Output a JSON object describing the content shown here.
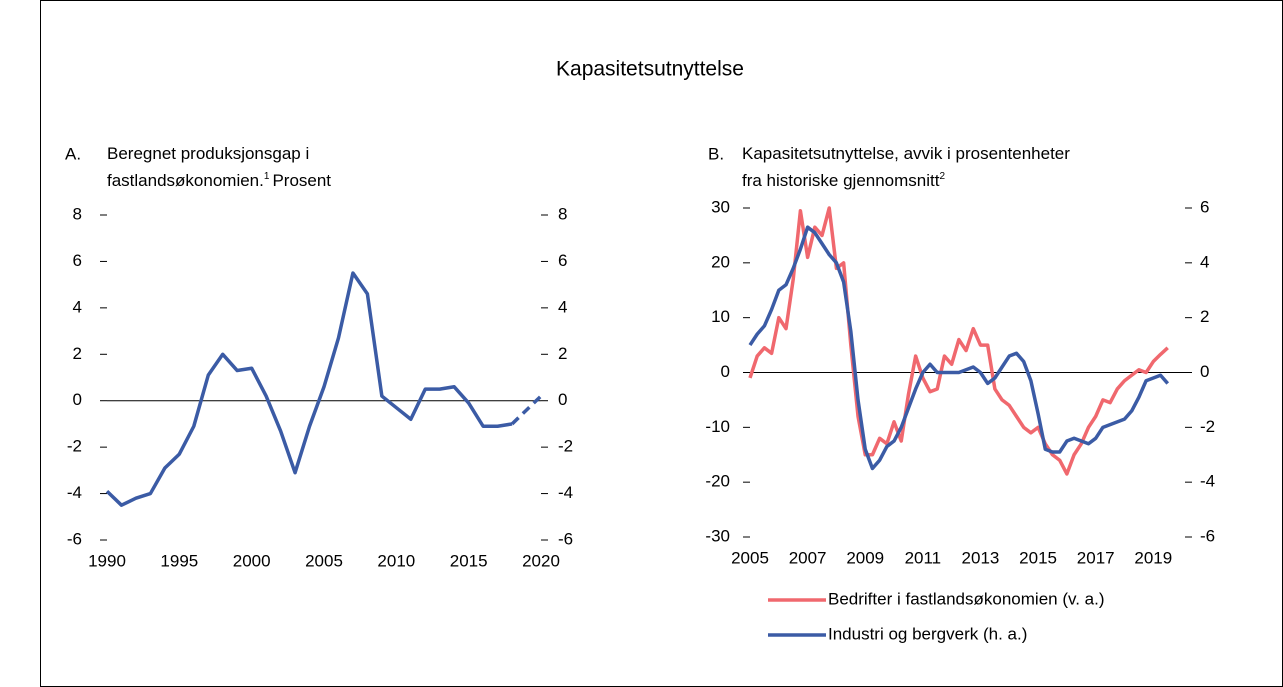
{
  "title": "Kapasitetsutnyttelse",
  "chart_data": [
    {
      "type": "line",
      "panel_label": "A.",
      "subtitle": [
        "Beregnet produksjonsgap i",
        "fastlandsøkonomien."
      ],
      "footnote_mark": "1",
      "subtitle_end": "Prosent",
      "x": [
        1990,
        1991,
        1992,
        1993,
        1994,
        1995,
        1996,
        1997,
        1998,
        1999,
        2000,
        2001,
        2002,
        2003,
        2004,
        2005,
        2006,
        2007,
        2008,
        2009,
        2010,
        2011,
        2012,
        2013,
        2014,
        2015,
        2016,
        2017,
        2018,
        2019,
        2020
      ],
      "series": [
        {
          "color": "#3b5ba5",
          "dashed": false,
          "values": [
            -3.9,
            -4.5,
            -4.2,
            -4.0,
            -2.9,
            -2.3,
            -1.1,
            1.1,
            2.0,
            1.3,
            1.4,
            0.2,
            -1.3,
            -3.1,
            -1.1,
            0.6,
            2.7,
            5.5,
            4.6,
            0.2,
            -0.3,
            -0.8,
            0.5,
            0.5,
            0.6,
            -0.1,
            -1.1,
            -1.1,
            -1.0,
            null,
            null
          ]
        },
        {
          "color": "#3b5ba5",
          "dashed": true,
          "values": [
            null,
            null,
            null,
            null,
            null,
            null,
            null,
            null,
            null,
            null,
            null,
            null,
            null,
            null,
            null,
            null,
            null,
            null,
            null,
            null,
            null,
            null,
            null,
            null,
            null,
            null,
            null,
            null,
            -1.0,
            -0.4,
            0.2
          ]
        }
      ],
      "xlim": [
        1990,
        2020
      ],
      "xticks": [
        1990,
        1995,
        2000,
        2005,
        2010,
        2015,
        2020
      ],
      "ylim": [
        -6,
        8
      ],
      "yticks": [
        -6,
        -4,
        -2,
        0,
        2,
        4,
        6,
        8
      ],
      "y2lim": [
        -6,
        8
      ],
      "y2ticks": [
        -6,
        -4,
        -2,
        0,
        2,
        4,
        6,
        8
      ]
    },
    {
      "type": "line",
      "panel_label": "B.",
      "subtitle": [
        "Kapasitetsutnyttelse, avvik i prosentenheter",
        "fra historiske gjennomsnitt"
      ],
      "footnote_mark": "2",
      "subtitle_end": "",
      "x": [
        2005,
        2005.25,
        2005.5,
        2005.75,
        2006,
        2006.25,
        2006.5,
        2006.75,
        2007,
        2007.25,
        2007.5,
        2007.75,
        2008,
        2008.25,
        2008.5,
        2008.75,
        2009,
        2009.25,
        2009.5,
        2009.75,
        2010,
        2010.25,
        2010.5,
        2010.75,
        2011,
        2011.25,
        2011.5,
        2011.75,
        2012,
        2012.25,
        2012.5,
        2012.75,
        2013,
        2013.25,
        2013.5,
        2013.75,
        2014,
        2014.25,
        2014.5,
        2014.75,
        2015,
        2015.25,
        2015.5,
        2015.75,
        2016,
        2016.25,
        2016.5,
        2016.75,
        2017,
        2017.25,
        2017.5,
        2017.75,
        2018,
        2018.25,
        2018.5,
        2018.75,
        2019,
        2019.25,
        2019.5
      ],
      "series": [
        {
          "name": "Bedrifter i fastlandsøkonomien (v. a.)",
          "color": "#f0686e",
          "values": [
            -1,
            3,
            4.5,
            3.5,
            10,
            8,
            17,
            29.5,
            21,
            26.5,
            25,
            30,
            19,
            20,
            5,
            -8,
            -15,
            -15,
            -12,
            -13,
            -9,
            -12.5,
            -4,
            3,
            -1,
            -3.5,
            -3,
            3,
            1.5,
            6,
            4,
            8,
            5,
            5,
            -3,
            -5,
            -6,
            -8,
            -10,
            -11,
            -10,
            -13,
            -15,
            -16,
            -18.5,
            -15,
            -13,
            -10,
            -8,
            -5,
            -5.5,
            -3,
            -1.5,
            -0.5,
            0.5,
            0,
            2,
            3.3,
            4.5
          ]
        },
        {
          "name": "Industri og bergverk (h. a.)",
          "color": "#3b5ba5",
          "axis": "y2",
          "values": [
            1.0,
            1.4,
            1.7,
            2.3,
            3.0,
            3.2,
            3.8,
            4.5,
            5.3,
            5.1,
            4.7,
            4.3,
            4.0,
            3.3,
            1.5,
            -1.0,
            -2.8,
            -3.5,
            -3.2,
            -2.7,
            -2.5,
            -2.0,
            -1.3,
            -0.6,
            0.0,
            0.3,
            0.0,
            0.0,
            0.0,
            0.0,
            0.1,
            0.2,
            0.0,
            -0.4,
            -0.2,
            0.2,
            0.6,
            0.7,
            0.4,
            -0.3,
            -1.5,
            -2.8,
            -2.9,
            -2.9,
            -2.5,
            -2.4,
            -2.5,
            -2.6,
            -2.4,
            -2.0,
            -1.9,
            -1.8,
            -1.7,
            -1.4,
            -0.9,
            -0.3,
            -0.2,
            -0.1,
            -0.4
          ]
        }
      ],
      "xlim": [
        2005,
        2020.1
      ],
      "xticks": [
        2005,
        2007,
        2009,
        2011,
        2013,
        2015,
        2017,
        2019
      ],
      "ylim": [
        -30,
        30
      ],
      "yticks": [
        -30,
        -20,
        -10,
        0,
        10,
        20,
        30
      ],
      "y2lim": [
        -6,
        6
      ],
      "y2ticks": [
        -6,
        -4,
        -2,
        0,
        2,
        4,
        6
      ]
    }
  ]
}
